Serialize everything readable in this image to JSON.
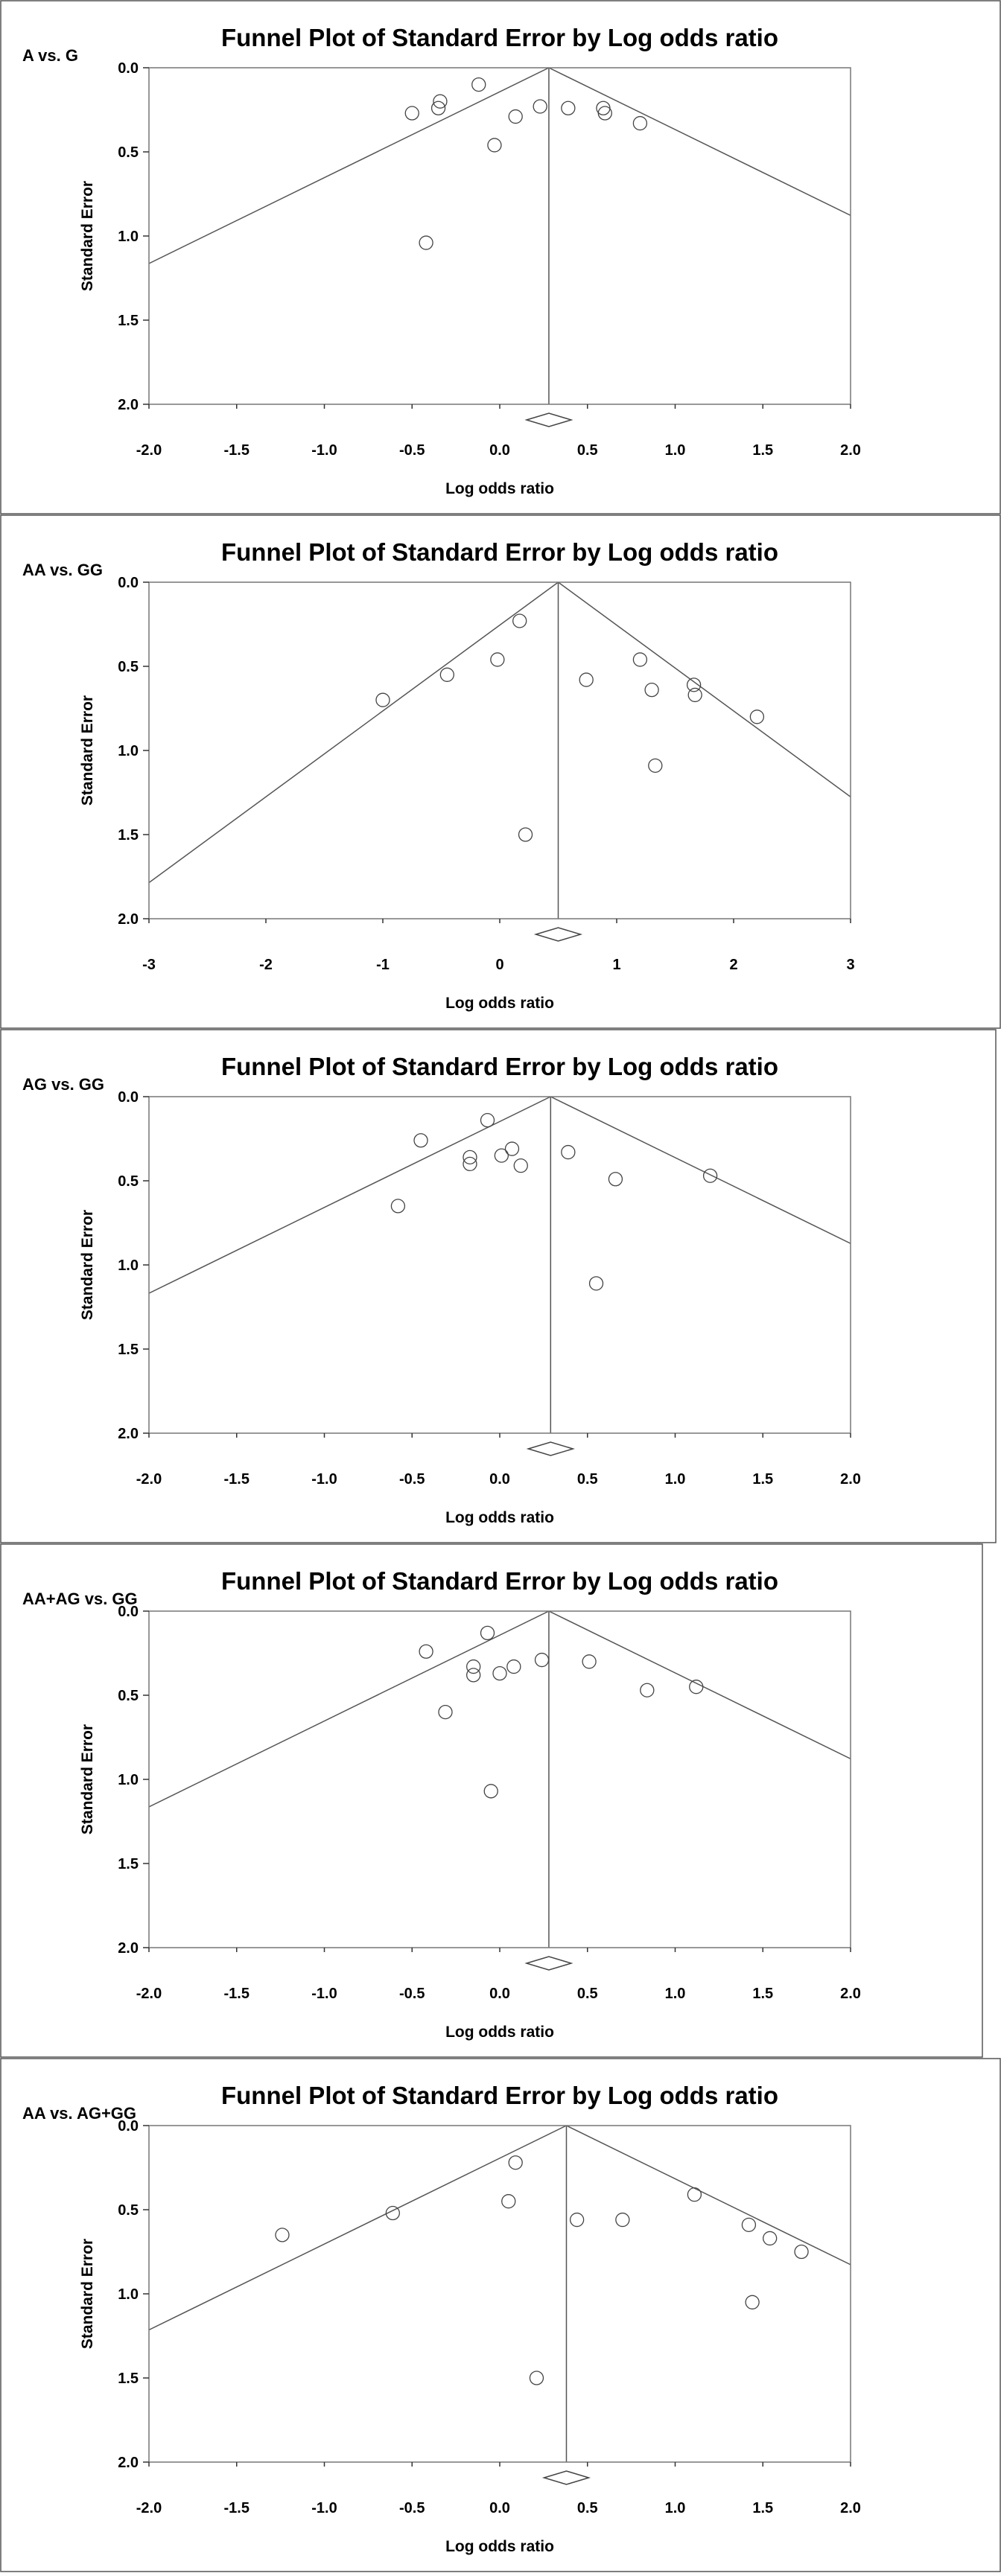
{
  "chart_data": [
    {
      "type": "scatter",
      "panel_label": "A vs. G",
      "title": "Funnel Plot of Standard Error by Log odds ratio",
      "xlabel": "Log odds ratio",
      "ylabel": "Standard Error",
      "xlim": [
        -2.0,
        2.0
      ],
      "ylim": [
        0.0,
        2.0
      ],
      "y_inverted": true,
      "xticks": [
        "-2.0",
        "-1.5",
        "-1.0",
        "-0.5",
        "0.0",
        "0.5",
        "1.0",
        "1.5",
        "2.0"
      ],
      "yticks": [
        "0.0",
        "0.5",
        "1.0",
        "1.5",
        "2.0"
      ],
      "pooled_estimate": 0.28,
      "points": [
        {
          "x": -0.5,
          "y": 0.27
        },
        {
          "x": -0.35,
          "y": 0.24
        },
        {
          "x": -0.34,
          "y": 0.2
        },
        {
          "x": -0.12,
          "y": 0.1
        },
        {
          "x": -0.03,
          "y": 0.46
        },
        {
          "x": 0.09,
          "y": 0.29
        },
        {
          "x": 0.23,
          "y": 0.23
        },
        {
          "x": 0.39,
          "y": 0.24
        },
        {
          "x": 0.59,
          "y": 0.24
        },
        {
          "x": 0.6,
          "y": 0.27
        },
        {
          "x": 0.8,
          "y": 0.33
        },
        {
          "x": -0.42,
          "y": 1.04
        }
      ]
    },
    {
      "type": "scatter",
      "panel_label": "AA vs. GG",
      "title": "Funnel Plot of Standard Error by Log odds ratio",
      "xlabel": "Log odds ratio",
      "ylabel": "Standard Error",
      "xlim": [
        -3,
        3
      ],
      "ylim": [
        0.0,
        2.0
      ],
      "y_inverted": true,
      "xticks": [
        "-3",
        "-2",
        "-1",
        "0",
        "1",
        "2",
        "3"
      ],
      "yticks": [
        "0.0",
        "0.5",
        "1.0",
        "1.5",
        "2.0"
      ],
      "pooled_estimate": 0.5,
      "points": [
        {
          "x": -1.0,
          "y": 0.7
        },
        {
          "x": -0.45,
          "y": 0.55
        },
        {
          "x": -0.02,
          "y": 0.46
        },
        {
          "x": 0.17,
          "y": 0.23
        },
        {
          "x": 0.22,
          "y": 1.5
        },
        {
          "x": 0.74,
          "y": 0.58
        },
        {
          "x": 1.2,
          "y": 0.46
        },
        {
          "x": 1.3,
          "y": 0.64
        },
        {
          "x": 1.33,
          "y": 1.09
        },
        {
          "x": 1.66,
          "y": 0.61
        },
        {
          "x": 1.67,
          "y": 0.67
        },
        {
          "x": 2.2,
          "y": 0.8
        }
      ]
    },
    {
      "type": "scatter",
      "panel_label": "AG vs. GG",
      "title": "Funnel Plot of Standard Error by Log odds ratio",
      "xlabel": "Log odds ratio",
      "ylabel": "Standard Error",
      "xlim": [
        -2.0,
        2.0
      ],
      "ylim": [
        0.0,
        2.0
      ],
      "y_inverted": true,
      "xticks": [
        "-2.0",
        "-1.5",
        "-1.0",
        "-0.5",
        "0.0",
        "0.5",
        "1.0",
        "1.5",
        "2.0"
      ],
      "yticks": [
        "0.0",
        "0.5",
        "1.0",
        "1.5",
        "2.0"
      ],
      "pooled_estimate": 0.29,
      "points": [
        {
          "x": -0.45,
          "y": 0.26
        },
        {
          "x": -0.58,
          "y": 0.65
        },
        {
          "x": -0.17,
          "y": 0.36
        },
        {
          "x": -0.17,
          "y": 0.4
        },
        {
          "x": -0.07,
          "y": 0.14
        },
        {
          "x": 0.01,
          "y": 0.35
        },
        {
          "x": 0.07,
          "y": 0.31
        },
        {
          "x": 0.12,
          "y": 0.41
        },
        {
          "x": 0.39,
          "y": 0.33
        },
        {
          "x": 0.66,
          "y": 0.49
        },
        {
          "x": 1.2,
          "y": 0.47
        },
        {
          "x": 0.55,
          "y": 1.11
        }
      ]
    },
    {
      "type": "scatter",
      "panel_label": "AA+AG vs. GG",
      "title": "Funnel Plot of Standard Error by Log odds ratio",
      "xlabel": "Log odds ratio",
      "ylabel": "Standard Error",
      "xlim": [
        -2.0,
        2.0
      ],
      "ylim": [
        0.0,
        2.0
      ],
      "y_inverted": true,
      "xticks": [
        "-2.0",
        "-1.5",
        "-1.0",
        "-0.5",
        "0.0",
        "0.5",
        "1.0",
        "1.5",
        "2.0"
      ],
      "yticks": [
        "0.0",
        "0.5",
        "1.0",
        "1.5",
        "2.0"
      ],
      "pooled_estimate": 0.28,
      "points": [
        {
          "x": -0.42,
          "y": 0.24
        },
        {
          "x": -0.31,
          "y": 0.6
        },
        {
          "x": -0.15,
          "y": 0.33
        },
        {
          "x": -0.15,
          "y": 0.38
        },
        {
          "x": -0.07,
          "y": 0.13
        },
        {
          "x": 0.0,
          "y": 0.37
        },
        {
          "x": 0.08,
          "y": 0.33
        },
        {
          "x": 0.24,
          "y": 0.29
        },
        {
          "x": 0.51,
          "y": 0.3
        },
        {
          "x": 0.84,
          "y": 0.47
        },
        {
          "x": 1.12,
          "y": 0.45
        },
        {
          "x": -0.05,
          "y": 1.07
        }
      ]
    },
    {
      "type": "scatter",
      "panel_label": "AA vs. AG+GG",
      "title": "Funnel Plot of Standard Error by Log odds ratio",
      "xlabel": "Log odds ratio",
      "ylabel": "Standard Error",
      "xlim": [
        -2.0,
        2.0
      ],
      "ylim": [
        0.0,
        2.0
      ],
      "y_inverted": true,
      "xticks": [
        "-2.0",
        "-1.5",
        "-1.0",
        "-0.5",
        "0.0",
        "0.5",
        "1.0",
        "1.5",
        "2.0"
      ],
      "yticks": [
        "0.0",
        "0.5",
        "1.0",
        "1.5",
        "2.0"
      ],
      "pooled_estimate": 0.38,
      "points": [
        {
          "x": -1.24,
          "y": 0.65
        },
        {
          "x": -0.61,
          "y": 0.52
        },
        {
          "x": 0.05,
          "y": 0.45
        },
        {
          "x": 0.09,
          "y": 0.22
        },
        {
          "x": 0.44,
          "y": 0.56
        },
        {
          "x": 0.7,
          "y": 0.56
        },
        {
          "x": 1.11,
          "y": 0.41
        },
        {
          "x": 1.42,
          "y": 0.59
        },
        {
          "x": 1.54,
          "y": 0.67
        },
        {
          "x": 1.72,
          "y": 0.75
        },
        {
          "x": 1.44,
          "y": 1.05
        },
        {
          "x": 0.21,
          "y": 1.5
        }
      ]
    }
  ]
}
